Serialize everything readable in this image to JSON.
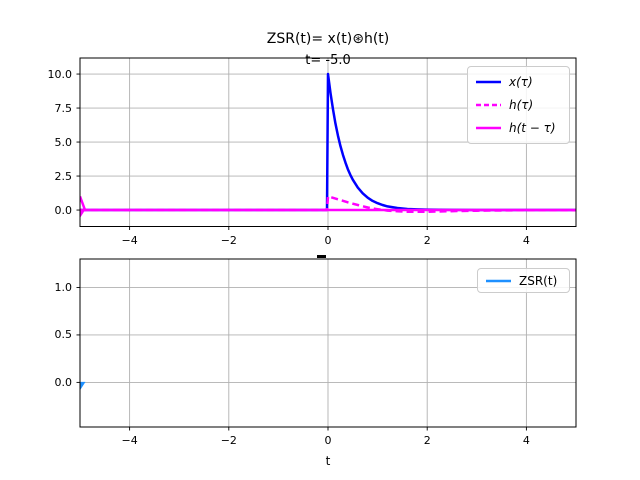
{
  "figure": {
    "title": "ZSR(t)= x(t)⊛h(t)",
    "annotation": "t= -5.0",
    "xlabel": "t",
    "colors": {
      "x_signal": "#0000ff",
      "impulse_response": "#ff00ff",
      "zsr": "#1e90ff",
      "grid": "#b0b0b0",
      "spine": "#000000",
      "legend_border": "#cccccc"
    }
  },
  "chart_data": [
    {
      "type": "line",
      "title": "ZSR(t)= x(t)⊛h(t)",
      "annotation": "t= -5.0",
      "xlabel": "",
      "xlim": [
        -5,
        5
      ],
      "ylim": [
        -1.21,
        11.18
      ],
      "grid": true,
      "legend_position": "upper right",
      "xticks": {
        "values": [
          -4,
          -2,
          0,
          2,
          4
        ],
        "labels": [
          "−4",
          "−2",
          "0",
          "2",
          "4"
        ]
      },
      "yticks": {
        "values": [
          0,
          2.5,
          5,
          7.5,
          10
        ],
        "labels": [
          "0.0",
          "2.5",
          "5.0",
          "7.5",
          "10.0"
        ]
      },
      "series": [
        {
          "name": "x(τ)",
          "color": "#0000ff",
          "style": "solid",
          "points": [
            [
              -5,
              0
            ],
            [
              -0.02,
              0
            ],
            [
              0,
              10
            ],
            [
              0.05,
              8.61
            ],
            [
              0.1,
              7.41
            ],
            [
              0.15,
              6.38
            ],
            [
              0.2,
              5.49
            ],
            [
              0.25,
              4.72
            ],
            [
              0.3,
              4.07
            ],
            [
              0.35,
              3.5
            ],
            [
              0.4,
              3.01
            ],
            [
              0.45,
              2.59
            ],
            [
              0.5,
              2.23
            ],
            [
              0.6,
              1.65
            ],
            [
              0.7,
              1.23
            ],
            [
              0.8,
              0.91
            ],
            [
              0.9,
              0.67
            ],
            [
              1,
              0.5
            ],
            [
              1.1,
              0.37
            ],
            [
              1.2,
              0.27
            ],
            [
              1.4,
              0.15
            ],
            [
              1.6,
              0.08
            ],
            [
              1.8,
              0.05
            ],
            [
              2,
              0.03
            ],
            [
              2.5,
              0.01
            ],
            [
              3,
              0
            ],
            [
              5,
              0
            ]
          ]
        },
        {
          "name": "h(τ)",
          "color": "#ff00ff",
          "style": "dashed",
          "points": [
            [
              -5,
              0
            ],
            [
              -0.02,
              0
            ],
            [
              0,
              1
            ],
            [
              0.1,
              0.9
            ],
            [
              0.2,
              0.79
            ],
            [
              0.3,
              0.68
            ],
            [
              0.4,
              0.57
            ],
            [
              0.5,
              0.47
            ],
            [
              0.6,
              0.37
            ],
            [
              0.7,
              0.28
            ],
            [
              0.8,
              0.19
            ],
            [
              0.9,
              0.12
            ],
            [
              1,
              0.06
            ],
            [
              1.1,
              0.01
            ],
            [
              1.2,
              -0.04
            ],
            [
              1.4,
              -0.09
            ],
            [
              1.6,
              -0.12
            ],
            [
              1.8,
              -0.13
            ],
            [
              2,
              -0.13
            ],
            [
              2.2,
              -0.11
            ],
            [
              2.4,
              -0.09
            ],
            [
              2.6,
              -0.07
            ],
            [
              2.8,
              -0.06
            ],
            [
              3,
              -0.05
            ],
            [
              3.4,
              -0.03
            ],
            [
              3.8,
              -0.02
            ],
            [
              4.2,
              -0.02
            ],
            [
              4.6,
              -0.01
            ],
            [
              5,
              -0.01
            ]
          ]
        },
        {
          "name": "h(t − τ)",
          "color": "#ff00ff",
          "style": "solid",
          "points": [
            [
              -5,
              1
            ],
            [
              -4.9,
              0
            ],
            [
              5,
              0
            ]
          ]
        }
      ],
      "markers": [
        {
          "shape": "caret-down",
          "color": "#ff00ff",
          "x": -5,
          "y": 0
        }
      ]
    },
    {
      "type": "line",
      "title": "",
      "annotation": "",
      "xlabel": "t",
      "xlim": [
        -5,
        5
      ],
      "ylim": [
        -0.47,
        1.3
      ],
      "grid": true,
      "legend_position": "upper right",
      "xticks": {
        "values": [
          -4,
          -2,
          0,
          2,
          4
        ],
        "labels": [
          "−4",
          "−2",
          "0",
          "2",
          "4"
        ]
      },
      "yticks": {
        "values": [
          0,
          0.5,
          1
        ],
        "labels": [
          "0.0",
          "0.5",
          "1.0"
        ]
      },
      "series": [
        {
          "name": "ZSR(t)",
          "color": "#1e90ff",
          "style": "solid",
          "points": [
            [
              -5,
              0
            ]
          ]
        }
      ],
      "markers": [
        {
          "shape": "caret-down",
          "color": "#1e90ff",
          "x": -5,
          "y": 0
        }
      ]
    }
  ]
}
